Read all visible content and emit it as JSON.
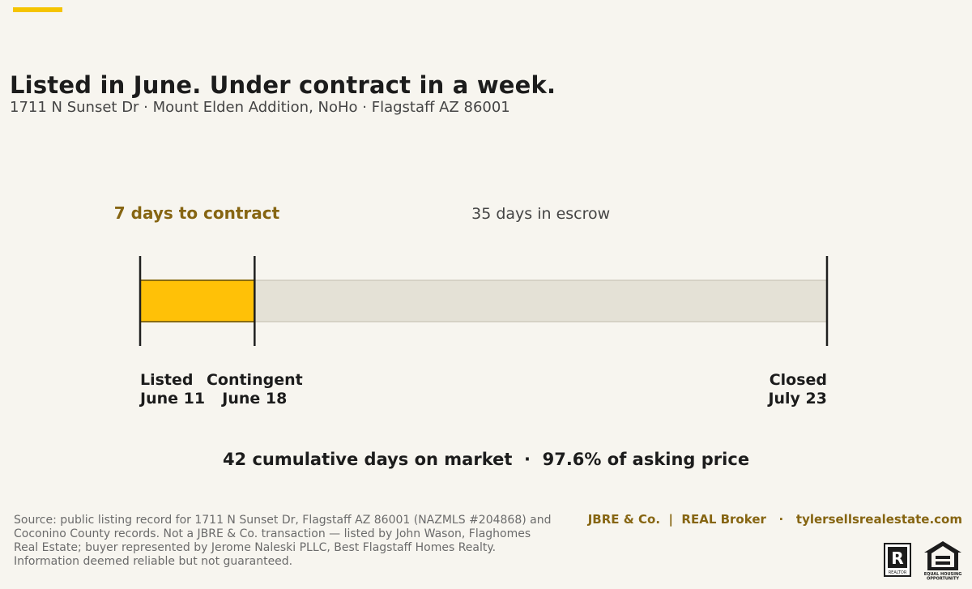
{
  "header": {
    "title": "Listed in June. Under contract in a week.",
    "subtitle": "1711 N Sunset Dr · Mount Elden Addition, NoHo · Flagstaff AZ 86001"
  },
  "chart_data": {
    "type": "timeline",
    "unit": "days",
    "total_days": 42,
    "segments": [
      {
        "label": "7 days to contract",
        "days": 7,
        "color": "#ffc107"
      },
      {
        "label": "35 days in escrow",
        "days": 35,
        "color": "#e4e1d6"
      }
    ],
    "milestones": [
      {
        "label": "Listed",
        "date": "June 11",
        "day": 0
      },
      {
        "label": "Contingent",
        "date": "June 18",
        "day": 7
      },
      {
        "label": "Closed",
        "date": "July 23",
        "day": 42
      }
    ],
    "colors": {
      "contract_label": "#866512",
      "escrow_label": "#444444",
      "tick": "#1f1f1f"
    }
  },
  "summary": "42 cumulative days on market  ·  97.6% of asking price",
  "footer": {
    "source": "Source: public listing record for 1711 N Sunset Dr, Flagstaff AZ 86001 (NAZMLS #204868) and Coconino County records. Not a JBRE & Co. transaction — listed by John Wason, Flaghomes Real Estate; buyer represented by Jerome Naleski PLLC, Best Flagstaff Homes Realty. Information deemed reliable but not guaranteed.",
    "brand": "JBRE & Co.  |  REAL Broker   ·   tylersellsrealestate.com",
    "realtor_logo_text": "REALTOR",
    "eho_logo_text": [
      "EQUAL HOUSING",
      "OPPORTUNITY"
    ]
  }
}
